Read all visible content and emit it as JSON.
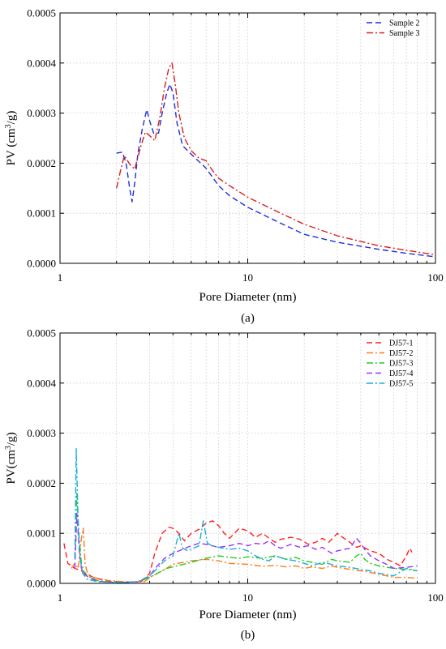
{
  "figure": {
    "panels": [
      "(a)",
      "(b)"
    ]
  },
  "chart_data": [
    {
      "type": "line",
      "panel_label": "(a)",
      "xlabel": "Pore Diameter (nm)",
      "ylabel_main": "PV (cm",
      "ylabel_sup": "3",
      "ylabel_end": "/g)",
      "x_scale": "log",
      "xlim": [
        1,
        100
      ],
      "ylim": [
        0,
        0.0005
      ],
      "x_ticks": [
        1,
        10,
        100
      ],
      "x_tick_labels": [
        "1",
        "10",
        "100"
      ],
      "y_ticks": [
        0,
        0.0001,
        0.0002,
        0.0003,
        0.0004,
        0.0005
      ],
      "y_tick_labels": [
        "0.0000",
        "0.0001",
        "0.0002",
        "0.0003",
        "0.0004",
        "0.0005"
      ],
      "grid": true,
      "legend_position": "top-right",
      "series": [
        {
          "name": "Sample 2",
          "color": "#1f2fd8",
          "dash": "dashed",
          "x": [
            2.0,
            2.15,
            2.25,
            2.35,
            2.42,
            2.5,
            2.6,
            2.75,
            2.9,
            3.0,
            3.15,
            3.35,
            3.5,
            3.7,
            3.85,
            4.0,
            4.2,
            4.5,
            5.0,
            6.0,
            7.0,
            8.0,
            10,
            15,
            20,
            30,
            50,
            70,
            100
          ],
          "y": [
            0.00022,
            0.000222,
            0.0002,
            0.00015,
            0.000123,
            0.00016,
            0.00022,
            0.00027,
            0.000307,
            0.000285,
            0.00026,
            0.00026,
            0.0003,
            0.00034,
            0.000358,
            0.00034,
            0.00028,
            0.000235,
            0.000218,
            0.00019,
            0.000155,
            0.000135,
            0.000112,
            8e-05,
            5.8e-05,
            4.2e-05,
            2.8e-05,
            2e-05,
            1.3e-05
          ]
        },
        {
          "name": "Sample 3",
          "color": "#d81f1f",
          "dash": "dashdot",
          "x": [
            2.0,
            2.1,
            2.2,
            2.35,
            2.5,
            2.7,
            2.85,
            3.0,
            3.2,
            3.4,
            3.6,
            3.8,
            3.95,
            4.1,
            4.3,
            4.6,
            5.0,
            5.5,
            6.0,
            6.5,
            7.0,
            8.0,
            10,
            15,
            20,
            30,
            50,
            70,
            100
          ],
          "y": [
            0.00015,
            0.000185,
            0.000215,
            0.000198,
            0.000188,
            0.000235,
            0.000262,
            0.000255,
            0.000245,
            0.00029,
            0.00035,
            0.00039,
            0.0004,
            0.00036,
            0.0003,
            0.00025,
            0.000225,
            0.00021,
            0.000205,
            0.000185,
            0.00017,
            0.000155,
            0.000132,
            0.0001,
            7.8e-05,
            5.5e-05,
            3.5e-05,
            2.6e-05,
            1.7e-05
          ]
        }
      ]
    },
    {
      "type": "line",
      "panel_label": "(b)",
      "xlabel": "Pore Diameter (nm)",
      "ylabel_main": "PV(cm",
      "ylabel_sup": "3",
      "ylabel_end": "/g)",
      "x_scale": "log",
      "xlim": [
        1,
        100
      ],
      "ylim": [
        0,
        0.0005
      ],
      "x_ticks": [
        1,
        10,
        100
      ],
      "x_tick_labels": [
        "1",
        "10",
        "100"
      ],
      "y_ticks": [
        0,
        0.0001,
        0.0002,
        0.0003,
        0.0004,
        0.0005
      ],
      "y_tick_labels": [
        "0.0000",
        "0.0001",
        "0.0002",
        "0.0003",
        "0.0004",
        "0.0005"
      ],
      "grid": true,
      "legend_position": "top-right",
      "series": [
        {
          "name": "DJ57-1",
          "color": "#ff2020",
          "dash": "dashed",
          "x": [
            1.05,
            1.1,
            1.15,
            1.2,
            1.3,
            1.5,
            1.8,
            2.2,
            2.7,
            3.0,
            3.2,
            3.5,
            3.8,
            4.0,
            4.3,
            4.6,
            5.0,
            5.5,
            6.0,
            6.5,
            7.0,
            7.5,
            8.0,
            8.5,
            9.0,
            10,
            11,
            12,
            13,
            14,
            15,
            17,
            19,
            21,
            23,
            25,
            27,
            30,
            32,
            35,
            38,
            40,
            45,
            50,
            55,
            60,
            65,
            70,
            73,
            75
          ],
          "y": [
            8e-05,
            4e-05,
            3.5e-05,
            3e-05,
            2.5e-05,
            1.2e-05,
            4e-06,
            2e-06,
            3e-06,
            2e-05,
            6e-05,
            0.0001,
            0.000112,
            0.00011,
            0.0001,
            8.5e-05,
            0.0001,
            0.000108,
            0.00012,
            0.000125,
            0.000115,
            0.0001,
            9e-05,
            0.0001,
            0.00011,
            0.000105,
            9.2e-05,
            0.0001,
            9e-05,
            8.2e-05,
            8.8e-05,
            9.2e-05,
            8.8e-05,
            7.8e-05,
            8.2e-05,
            9e-05,
            8.2e-05,
            0.0001,
            9.2e-05,
            8.2e-05,
            7.2e-05,
            7.5e-05,
            6.5e-05,
            6e-05,
            4.8e-05,
            4.2e-05,
            3.5e-05,
            5.5e-05,
            7e-05,
            6.2e-05
          ]
        },
        {
          "name": "DJ57-2",
          "color": "#ff7a1a",
          "dash": "dashdot",
          "x": [
            1.15,
            1.2,
            1.25,
            1.3,
            1.33,
            1.36,
            1.4,
            1.5,
            1.8,
            2.2,
            2.8,
            3.1,
            3.5,
            4.0,
            5.0,
            6.0,
            7.0,
            8.0,
            10,
            12,
            14,
            16,
            18,
            20,
            22,
            25,
            28,
            30,
            35,
            40,
            45,
            50,
            55,
            60,
            70,
            80
          ],
          "y": [
            3e-05,
            4e-05,
            3e-05,
            9e-05,
            0.00011,
            4e-05,
            2e-05,
            1.2e-05,
            6e-06,
            3e-06,
            3e-06,
            1.5e-05,
            2.5e-05,
            3.8e-05,
            4.5e-05,
            4.8e-05,
            4.5e-05,
            4e-05,
            3.8e-05,
            3.4e-05,
            3.6e-05,
            3.3e-05,
            3.5e-05,
            3e-05,
            3.3e-05,
            3e-05,
            3.5e-05,
            3.2e-05,
            2.8e-05,
            2.5e-05,
            2.2e-05,
            1.8e-05,
            1.5e-05,
            1.2e-05,
            1.2e-05,
            1e-05
          ]
        },
        {
          "name": "DJ57-3",
          "color": "#22cc22",
          "dash": "dashdot",
          "x": [
            1.2,
            1.23,
            1.26,
            1.3,
            1.35,
            1.45,
            1.6,
            2.0,
            2.6,
            3.0,
            3.3,
            3.7,
            4.2,
            5.0,
            6.0,
            7.0,
            8.0,
            9.0,
            10,
            12,
            14,
            16,
            18,
            20,
            22,
            25,
            28,
            30,
            35,
            38,
            40,
            42,
            45,
            50,
            60,
            70,
            80
          ],
          "y": [
            5e-05,
            0.00018,
            0.0001,
            4e-05,
            2e-05,
            1.2e-05,
            5e-06,
            2e-06,
            3e-06,
            1.2e-05,
            2e-05,
            3e-05,
            3.5e-05,
            4.2e-05,
            5e-05,
            5.5e-05,
            5.2e-05,
            5e-05,
            5.3e-05,
            5e-05,
            5.5e-05,
            4.8e-05,
            5.2e-05,
            4.5e-05,
            4.2e-05,
            3.8e-05,
            4.8e-05,
            4.5e-05,
            4.2e-05,
            5.5e-05,
            6e-05,
            4.8e-05,
            4e-05,
            3.5e-05,
            3e-05,
            2.8e-05,
            2.5e-05
          ]
        },
        {
          "name": "DJ57-4",
          "color": "#9933ff",
          "dash": "dashed",
          "x": [
            1.2,
            1.23,
            1.27,
            1.3,
            1.35,
            1.45,
            1.6,
            2.0,
            2.6,
            3.0,
            3.3,
            3.6,
            4.0,
            4.5,
            5.0,
            5.5,
            6.0,
            7.0,
            8.0,
            9.0,
            10,
            11,
            12,
            13,
            14,
            15,
            17,
            19,
            21,
            23,
            25,
            28,
            30,
            35,
            38,
            40,
            42,
            45,
            50,
            55,
            60,
            70,
            80
          ],
          "y": [
            3e-05,
            0.00014,
            6e-05,
            3e-05,
            1.8e-05,
            1e-05,
            4e-06,
            2e-06,
            3e-06,
            1.5e-05,
            3.5e-05,
            5e-05,
            6e-05,
            6.8e-05,
            7.5e-05,
            8e-05,
            7.8e-05,
            7.2e-05,
            7.5e-05,
            8e-05,
            7.5e-05,
            8e-05,
            7.8e-05,
            8.5e-05,
            7.5e-05,
            7e-05,
            7.8e-05,
            7.2e-05,
            7.5e-05,
            6.8e-05,
            7.2e-05,
            6e-05,
            6.5e-05,
            7e-05,
            9e-05,
            8e-05,
            6.8e-05,
            5.5e-05,
            4.5e-05,
            3.8e-05,
            3e-05,
            3.2e-05,
            3.5e-05
          ]
        },
        {
          "name": "DJ57-5",
          "color": "#1aaed8",
          "dash": "dashdot",
          "x": [
            1.2,
            1.22,
            1.25,
            1.28,
            1.32,
            1.4,
            1.6,
            2.0,
            2.6,
            3.0,
            3.3,
            3.6,
            4.0,
            4.3,
            4.5,
            4.8,
            5.0,
            5.5,
            5.8,
            6.1,
            6.5,
            7.0,
            8.0,
            9.0,
            10,
            11,
            12,
            13,
            14,
            16,
            18,
            20,
            22,
            25,
            28,
            30,
            35,
            40,
            45,
            50,
            60,
            70,
            80
          ],
          "y": [
            5e-05,
            0.00027,
            0.00012,
            5e-05,
            2e-05,
            8e-06,
            3e-06,
            2e-06,
            3e-06,
            1.5e-05,
            3e-05,
            4.5e-05,
            5.5e-05,
            0.0001,
            7e-05,
            6.5e-05,
            6.8e-05,
            7.5e-05,
            0.000125,
            8e-05,
            7.5e-05,
            7.2e-05,
            6.8e-05,
            7e-05,
            6.5e-05,
            5.5e-05,
            4.8e-05,
            4.5e-05,
            5.5e-05,
            4.8e-05,
            4.5e-05,
            4e-05,
            3.5e-05,
            4.2e-05,
            3.8e-05,
            3.5e-05,
            3.2e-05,
            2.8e-05,
            2.5e-05,
            2e-05,
            1.5e-05,
            3e-05,
            2.5e-05
          ]
        }
      ]
    }
  ]
}
